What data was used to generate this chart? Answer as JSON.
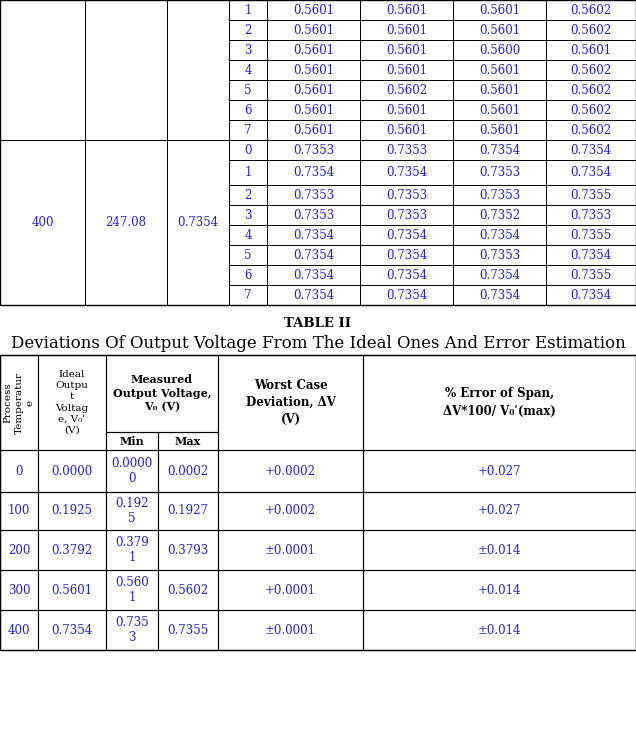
{
  "table1_caption": "TABLE II",
  "table1_title": "Deviations Of Output Voltage From The Ideal Ones And Error Estimation",
  "top_table": {
    "rows_top": [
      [
        "",
        "",
        "",
        "1",
        "0.5601",
        "0.5601",
        "0.5601",
        "0.5602"
      ],
      [
        "",
        "",
        "",
        "2",
        "0.5601",
        "0.5601",
        "0.5601",
        "0.5602"
      ],
      [
        "",
        "",
        "",
        "3",
        "0.5601",
        "0.5601",
        "0.5600",
        "0.5601"
      ],
      [
        "",
        "",
        "",
        "4",
        "0.5601",
        "0.5601",
        "0.5601",
        "0.5602"
      ],
      [
        "",
        "",
        "",
        "5",
        "0.5601",
        "0.5602",
        "0.5601",
        "0.5602"
      ],
      [
        "",
        "",
        "",
        "6",
        "0.5601",
        "0.5601",
        "0.5601",
        "0.5602"
      ],
      [
        "",
        "",
        "",
        "7",
        "0.5601",
        "0.5601",
        "0.5601",
        "0.5602"
      ]
    ],
    "rows_bottom": [
      [
        "400",
        "247.08",
        "0.7354",
        "0",
        "0.7353",
        "0.7353",
        "0.7354",
        "0.7354"
      ],
      [
        "",
        "",
        "",
        "1",
        "0.7354",
        "0.7354",
        "0.7353",
        "0.7354"
      ],
      [
        "",
        "",
        "",
        "2",
        "0.7353",
        "0.7353",
        "0.7353",
        "0.7355"
      ],
      [
        "",
        "",
        "",
        "3",
        "0.7353",
        "0.7353",
        "0.7352",
        "0.7353"
      ],
      [
        "",
        "",
        "",
        "4",
        "0.7354",
        "0.7354",
        "0.7354",
        "0.7355"
      ],
      [
        "",
        "",
        "",
        "5",
        "0.7354",
        "0.7354",
        "0.7353",
        "0.7354"
      ],
      [
        "",
        "",
        "",
        "6",
        "0.7354",
        "0.7354",
        "0.7354",
        "0.7355"
      ],
      [
        "",
        "",
        "",
        "7",
        "0.7354",
        "0.7354",
        "0.7354",
        "0.7354"
      ]
    ]
  },
  "bottom_table": {
    "data_rows": [
      [
        "0",
        "0.0000",
        "0.0000\n0",
        "0.0002",
        "+0.0002",
        "+0.027"
      ],
      [
        "100",
        "0.1925",
        "0.192\n5",
        "0.1927",
        "+0.0002",
        "+0.027"
      ],
      [
        "200",
        "0.3792",
        "0.379\n1",
        "0.3793",
        "±0.0001",
        "±0.014"
      ],
      [
        "300",
        "0.5601",
        "0.560\n1",
        "0.5602",
        "+0.0001",
        "+0.014"
      ],
      [
        "400",
        "0.7354",
        "0.735\n3",
        "0.7355",
        "±0.0001",
        "±0.014"
      ]
    ]
  },
  "bg_color": "#ffffff",
  "text_color": "#2222cc",
  "border_color": "#000000",
  "header_text_color": "#000000",
  "caption_color": "#000000",
  "fontsize": 8.5,
  "fontfamily": "DejaVu Serif"
}
